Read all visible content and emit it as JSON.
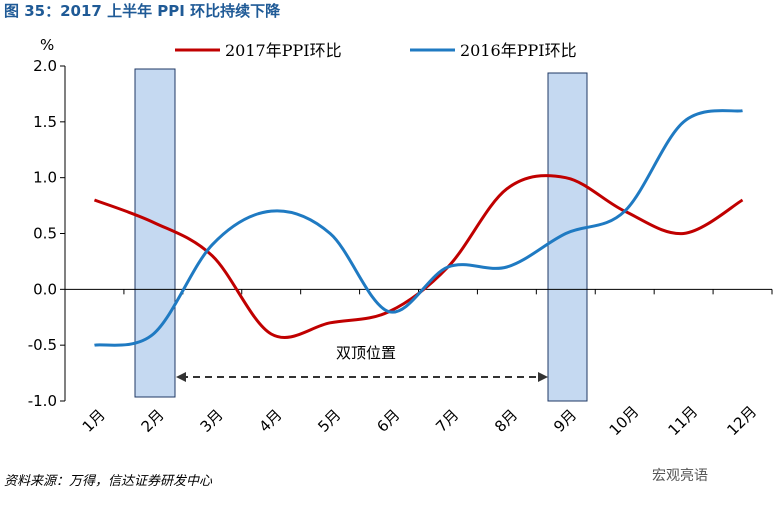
{
  "chart_data": {
    "type": "line",
    "title": "图 35：2017 上半年 PPI 环比持续下降",
    "y_unit": "%",
    "categories": [
      "1月",
      "2月",
      "3月",
      "4月",
      "5月",
      "6月",
      "7月",
      "8月",
      "9月",
      "10月",
      "11月",
      "12月"
    ],
    "series": [
      {
        "name": "2017年PPI环比",
        "color": "#c00000",
        "values": [
          0.8,
          0.6,
          0.3,
          -0.4,
          -0.3,
          -0.2,
          0.2,
          0.9,
          1.0,
          0.7,
          0.5,
          0.8
        ]
      },
      {
        "name": "2016年PPI环比",
        "color": "#1f7ac2",
        "values": [
          -0.5,
          -0.4,
          0.4,
          0.7,
          0.5,
          -0.2,
          0.2,
          0.2,
          0.5,
          0.7,
          1.5,
          1.6
        ]
      }
    ],
    "ylim": [
      -1,
      2
    ],
    "yticks": [
      {
        "value": -1,
        "label": "-1.0"
      },
      -0.5,
      {
        "value": 0,
        "label": "0.0"
      },
      0.5,
      {
        "value": 1,
        "label": "1.0"
      },
      1.5,
      {
        "value": 2,
        "label": "2.0"
      }
    ],
    "annotation": "双顶位置",
    "source": "资料来源：万得，信达证券研发中心",
    "watermark": "宏观亮语",
    "legend": "top"
  }
}
